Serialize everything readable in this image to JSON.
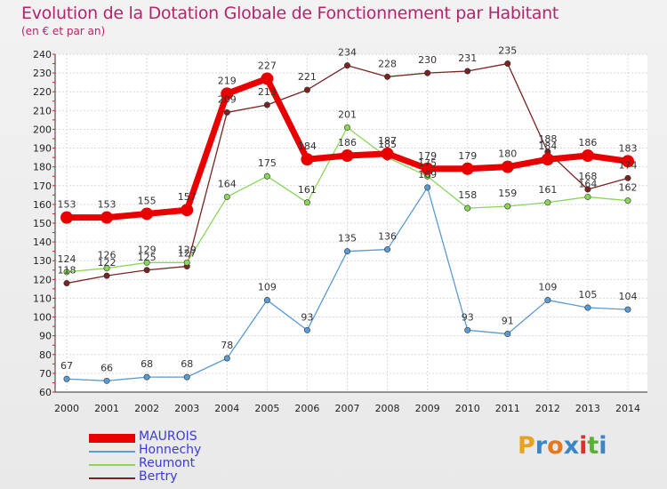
{
  "header": {
    "title": "Evolution de la Dotation Globale de Fonctionnement par Habitant",
    "subtitle": "(en € et par an)"
  },
  "logo": {
    "letters": [
      "P",
      "r",
      "o",
      "x",
      "i",
      "t",
      "i"
    ],
    "colors": [
      "#e8a21e",
      "#3b86c6",
      "#e8761e",
      "#3b86c6",
      "#d8322a",
      "#5ab036",
      "#3b86c6"
    ]
  },
  "chart_data": {
    "type": "line",
    "title": "Evolution de la Dotation Globale de Fonctionnement par Habitant",
    "subtitle": "(en € et par an)",
    "xlabel": "",
    "ylabel": "",
    "x": [
      "2000",
      "2001",
      "2002",
      "2003",
      "2004",
      "2005",
      "2006",
      "2007",
      "2008",
      "2009",
      "2010",
      "2011",
      "2012",
      "2013",
      "2014"
    ],
    "ylim": [
      60,
      240
    ],
    "ytick_step": 10,
    "yticks": [
      "60",
      "70",
      "80",
      "90",
      "100",
      "110",
      "120",
      "130",
      "140",
      "150",
      "160",
      "170",
      "180",
      "190",
      "200",
      "210",
      "220",
      "230",
      "240"
    ],
    "grid": true,
    "legend_position": "bottom-left",
    "series": [
      {
        "name": "MAUROIS",
        "color": "#e80000",
        "values": [
          153,
          153,
          155,
          157,
          219,
          227,
          184,
          186,
          187,
          179,
          179,
          180,
          184,
          186,
          183
        ]
      },
      {
        "name": "Honnechy",
        "color": "#5a9bd4",
        "values": [
          67,
          66,
          68,
          68,
          78,
          109,
          93,
          135,
          136,
          169,
          93,
          91,
          109,
          105,
          104
        ]
      },
      {
        "name": "Reumont",
        "color": "#8bd65a",
        "values": [
          124,
          126,
          129,
          129,
          164,
          175,
          161,
          201,
          185,
          175,
          158,
          159,
          161,
          164,
          162
        ]
      },
      {
        "name": "Bertry",
        "color": "#7a2323",
        "values": [
          118,
          122,
          125,
          127,
          209,
          213,
          221,
          234,
          228,
          230,
          231,
          235,
          188,
          168,
          174
        ]
      }
    ]
  }
}
